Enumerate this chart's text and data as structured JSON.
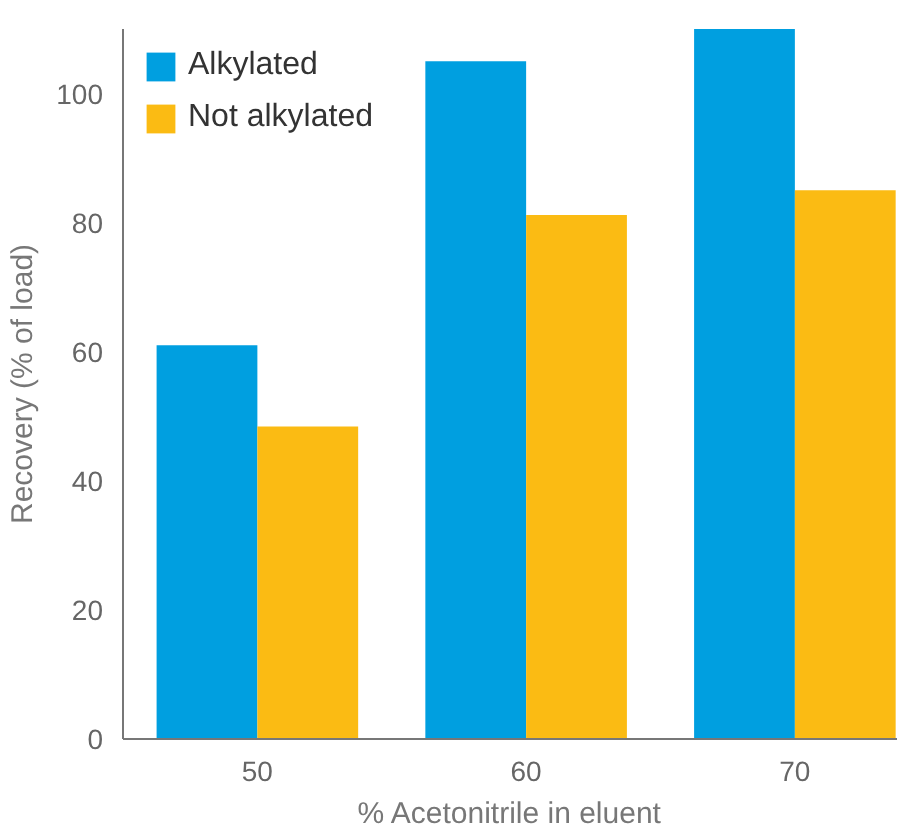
{
  "chart_data": {
    "type": "bar",
    "xlabel": "% Acetonitrile in eluent",
    "ylabel": "Recovery (% of load)",
    "categories": [
      "50",
      "60",
      "70"
    ],
    "series": [
      {
        "name": "Alkylated",
        "color": "#009fe0",
        "values": [
          61,
          105,
          110
        ]
      },
      {
        "name": "Not alkylated",
        "color": "#fbbb13",
        "values": [
          48.4,
          81.2,
          85
        ]
      }
    ],
    "ylim": [
      0,
      110
    ],
    "yticks": [
      0,
      20,
      40,
      60,
      80,
      100
    ],
    "grid": false,
    "legend": "top left"
  }
}
